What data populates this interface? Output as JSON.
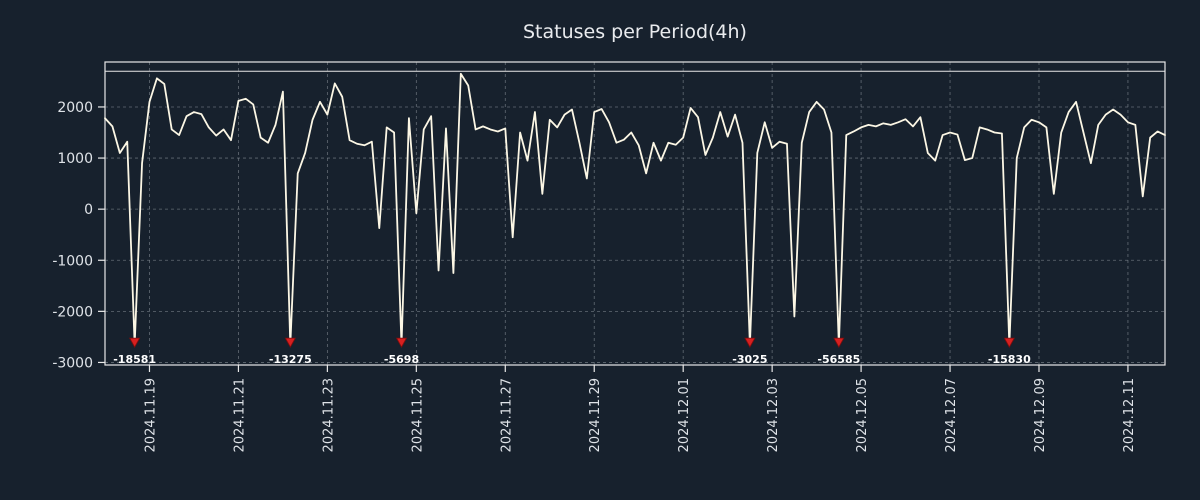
{
  "colors": {
    "background": "#17212d",
    "line": "#fcf7e5",
    "grid": "#7c848c",
    "axis": "#e8e8e8",
    "tick_label": "#dfe3e8",
    "title": "#e9ebee",
    "marker": "#d62020",
    "marker_edge": "#7e0d0d",
    "marker_label": "#ffffff"
  },
  "chart_data": {
    "type": "line",
    "title": "Statuses per Period(4h)",
    "xlabel": "",
    "ylabel": "",
    "x_unit": "days since 2024-11-18 00:00 (4h sampling)",
    "x_start_day": 0,
    "x_step_days": 0.1666667,
    "xlim": [
      0,
      23.8333
    ],
    "ylim": [
      -3050,
      2880
    ],
    "grid": true,
    "legend": "none",
    "hline": 2700,
    "yticks": [
      2000,
      1000,
      0,
      -1000,
      -2000,
      -3000
    ],
    "xticks": [
      {
        "day": 1,
        "label": "2024.11.19"
      },
      {
        "day": 3,
        "label": "2024.11.21"
      },
      {
        "day": 5,
        "label": "2024.11.23"
      },
      {
        "day": 7,
        "label": "2024.11.25"
      },
      {
        "day": 9,
        "label": "2024.11.27"
      },
      {
        "day": 11,
        "label": "2024.11.29"
      },
      {
        "day": 13,
        "label": "2024.12.01"
      },
      {
        "day": 15,
        "label": "2024.12.03"
      },
      {
        "day": 17,
        "label": "2024.12.05"
      },
      {
        "day": 19,
        "label": "2024.12.07"
      },
      {
        "day": 21,
        "label": "2024.12.09"
      },
      {
        "day": 23,
        "label": "2024.12.11"
      }
    ],
    "values": [
      1780,
      1620,
      1100,
      1320,
      -2650,
      900,
      2100,
      2560,
      2450,
      1560,
      1450,
      1820,
      1900,
      1860,
      1600,
      1440,
      1560,
      1350,
      2120,
      2160,
      2050,
      1400,
      1300,
      1650,
      2300,
      -2650,
      700,
      1100,
      1750,
      2100,
      1850,
      2460,
      2200,
      1350,
      1280,
      1250,
      1320,
      -370,
      1600,
      1500,
      -2650,
      1780,
      -80,
      1560,
      1820,
      -1200,
      1580,
      -1250,
      2650,
      2420,
      1560,
      1620,
      1560,
      1520,
      1580,
      -550,
      1500,
      950,
      1900,
      300,
      1750,
      1600,
      1850,
      1950,
      1300,
      600,
      1900,
      1960,
      1700,
      1300,
      1360,
      1500,
      1250,
      700,
      1300,
      950,
      1300,
      1260,
      1400,
      1980,
      1800,
      1060,
      1400,
      1900,
      1420,
      1850,
      1300,
      -2650,
      1100,
      1700,
      1200,
      1320,
      1280,
      -2100,
      1300,
      1900,
      2100,
      1950,
      1500,
      -2650,
      1450,
      1520,
      1600,
      1650,
      1620,
      1680,
      1650,
      1700,
      1760,
      1620,
      1800,
      1100,
      950,
      1450,
      1500,
      1460,
      960,
      1000,
      1600,
      1560,
      1500,
      1480,
      -2650,
      1000,
      1600,
      1750,
      1700,
      1600,
      300,
      1500,
      1900,
      2100,
      1500,
      900,
      1650,
      1850,
      1950,
      1850,
      1700,
      1650,
      250,
      1400,
      1520,
      1450
    ],
    "marker_y": -2700,
    "markers": [
      {
        "day": 0.667,
        "label": "-18581"
      },
      {
        "day": 4.167,
        "label": "-13275"
      },
      {
        "day": 6.667,
        "label": "-5698"
      },
      {
        "day": 14.5,
        "label": "-3025"
      },
      {
        "day": 16.5,
        "label": "-56585"
      },
      {
        "day": 20.333,
        "label": "-15830"
      }
    ]
  }
}
